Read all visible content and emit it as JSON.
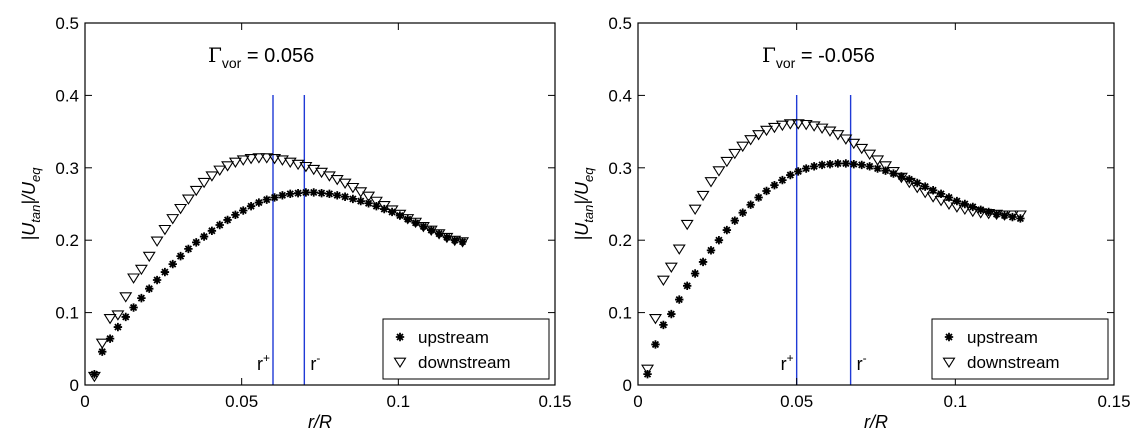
{
  "chart_data": [
    {
      "type": "scatter",
      "annotation": {
        "symbol": "Γ",
        "sub": "vor",
        "value": "= 0.056"
      },
      "xlabel": "r/R",
      "ylabel": {
        "base": "|U",
        "sub1": "tan",
        "mid": "|/U",
        "sub2": "eq"
      },
      "xlim": [
        0,
        0.15
      ],
      "ylim": [
        0,
        0.5
      ],
      "xticks": [
        0,
        0.05,
        0.1,
        0.15
      ],
      "xtick_labels": [
        "0",
        "0.05",
        "0.1",
        "0.15"
      ],
      "yticks": [
        0,
        0.1,
        0.2,
        0.3,
        0.4,
        0.5
      ],
      "ytick_labels": [
        "0",
        "0.1",
        "0.2",
        "0.3",
        "0.4",
        "0.5"
      ],
      "grid": false,
      "legend_position": "bottom-right",
      "vlines": [
        {
          "x": 0.06,
          "label": "r",
          "sup": "+",
          "color": "#1f3ad6"
        },
        {
          "x": 0.07,
          "label": "r",
          "sup": "-",
          "color": "#1f3ad6"
        }
      ],
      "series": [
        {
          "name": "upstream",
          "marker": "star",
          "x_start": 0.003,
          "x_step": 0.0025,
          "y": [
            0.015,
            0.046,
            0.064,
            0.08,
            0.094,
            0.107,
            0.12,
            0.133,
            0.145,
            0.156,
            0.167,
            0.178,
            0.188,
            0.197,
            0.205,
            0.213,
            0.221,
            0.228,
            0.235,
            0.241,
            0.247,
            0.252,
            0.256,
            0.259,
            0.262,
            0.264,
            0.265,
            0.266,
            0.266,
            0.265,
            0.264,
            0.262,
            0.26,
            0.257,
            0.254,
            0.251,
            0.247,
            0.243,
            0.239,
            0.234,
            0.229,
            0.224,
            0.219,
            0.214,
            0.209,
            0.204,
            0.2,
            0.198
          ]
        },
        {
          "name": "downstream",
          "marker": "triangle-down",
          "x_start": 0.003,
          "x_step": 0.0025,
          "y": [
            0.012,
            0.058,
            0.092,
            0.097,
            0.122,
            0.148,
            0.16,
            0.178,
            0.199,
            0.215,
            0.23,
            0.244,
            0.257,
            0.269,
            0.28,
            0.289,
            0.297,
            0.303,
            0.308,
            0.311,
            0.313,
            0.314,
            0.314,
            0.313,
            0.311,
            0.308,
            0.305,
            0.302,
            0.298,
            0.294,
            0.289,
            0.284,
            0.279,
            0.273,
            0.267,
            0.261,
            0.254,
            0.248,
            0.242,
            0.236,
            0.23,
            0.225,
            0.219,
            0.214,
            0.209,
            0.204,
            0.2,
            0.198
          ]
        }
      ]
    },
    {
      "type": "scatter",
      "annotation": {
        "symbol": "Γ",
        "sub": "vor",
        "value": "= -0.056"
      },
      "xlabel": "r/R",
      "ylabel": {
        "base": "|U",
        "sub1": "tan",
        "mid": "|/U",
        "sub2": "eq"
      },
      "xlim": [
        0,
        0.15
      ],
      "ylim": [
        0,
        0.5
      ],
      "xticks": [
        0,
        0.05,
        0.1,
        0.15
      ],
      "xtick_labels": [
        "0",
        "0.05",
        "0.1",
        "0.15"
      ],
      "yticks": [
        0,
        0.1,
        0.2,
        0.3,
        0.4,
        0.5
      ],
      "ytick_labels": [
        "0",
        "0.1",
        "0.2",
        "0.3",
        "0.4",
        "0.5"
      ],
      "grid": false,
      "legend_position": "bottom-right",
      "vlines": [
        {
          "x": 0.05,
          "label": "r",
          "sup": "+",
          "color": "#1f3ad6"
        },
        {
          "x": 0.067,
          "label": "r",
          "sup": "-",
          "color": "#1f3ad6"
        }
      ],
      "series": [
        {
          "name": "upstream",
          "marker": "star",
          "x_start": 0.003,
          "x_step": 0.0025,
          "y": [
            0.015,
            0.056,
            0.083,
            0.098,
            0.118,
            0.137,
            0.154,
            0.17,
            0.186,
            0.2,
            0.214,
            0.227,
            0.238,
            0.249,
            0.259,
            0.268,
            0.276,
            0.283,
            0.29,
            0.295,
            0.299,
            0.302,
            0.304,
            0.305,
            0.306,
            0.306,
            0.305,
            0.304,
            0.302,
            0.299,
            0.296,
            0.292,
            0.288,
            0.284,
            0.279,
            0.274,
            0.269,
            0.264,
            0.259,
            0.254,
            0.25,
            0.246,
            0.242,
            0.239,
            0.236,
            0.234,
            0.232,
            0.23
          ]
        },
        {
          "name": "downstream",
          "marker": "triangle-down",
          "x_start": 0.003,
          "x_step": 0.0025,
          "y": [
            0.022,
            0.092,
            0.145,
            0.163,
            0.188,
            0.222,
            0.243,
            0.262,
            0.281,
            0.296,
            0.309,
            0.32,
            0.33,
            0.339,
            0.346,
            0.352,
            0.356,
            0.359,
            0.361,
            0.361,
            0.36,
            0.358,
            0.355,
            0.351,
            0.346,
            0.34,
            0.334,
            0.327,
            0.319,
            0.311,
            0.303,
            0.295,
            0.287,
            0.28,
            0.273,
            0.266,
            0.26,
            0.255,
            0.25,
            0.246,
            0.243,
            0.24,
            0.238,
            0.237,
            0.236,
            0.235,
            0.235,
            0.235
          ]
        }
      ]
    }
  ]
}
